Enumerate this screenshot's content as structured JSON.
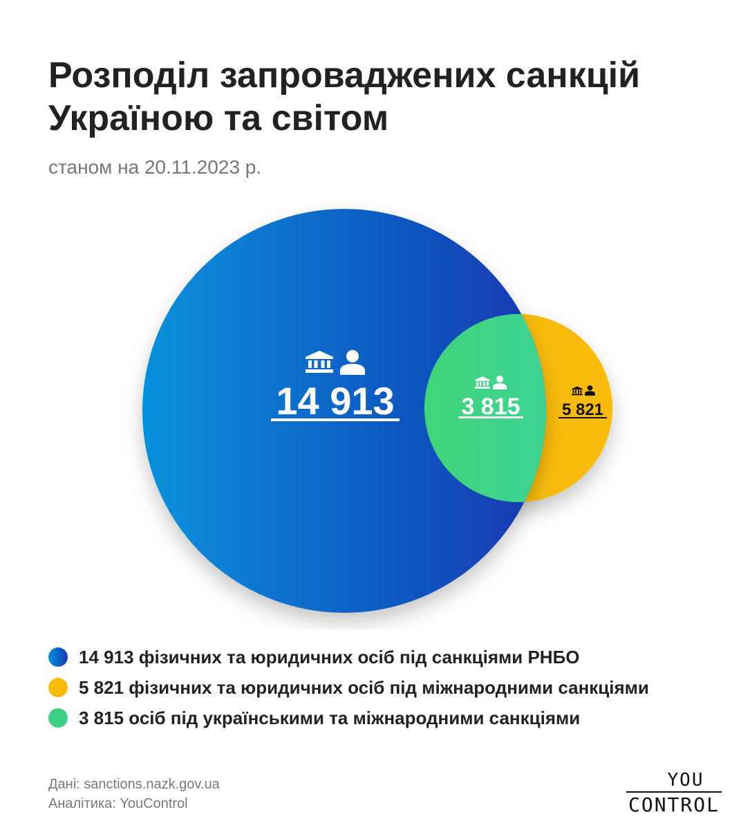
{
  "header": {
    "title": "Розподіл запроваджених санкцій Україною та світом",
    "subtitle": "станом на 20.11.2023 р."
  },
  "chart_data": {
    "type": "venn",
    "sets": [
      {
        "label": "14 913",
        "value": 14913,
        "colors": [
          "#0691dd",
          "#1537b0"
        ]
      },
      {
        "label": "5 821",
        "value": 5821,
        "color": "#f9bc0b"
      }
    ],
    "intersection": {
      "label": "3 815",
      "value": 3815,
      "color": "#3ecf87"
    },
    "legend": [
      {
        "text": "14 913 фізичних та юридичних осіб під санкціями РНБО",
        "color": "#1a5bc8"
      },
      {
        "text": "5 821 фізичних та юридичних осіб під міжнародними санкціями",
        "color": "#f9bc0b"
      },
      {
        "text": "3 815 осіб під українськими та міжнародними санкціями",
        "color": "#3ecf87"
      }
    ]
  },
  "footer": {
    "source": "Дані: sanctions.nazk.gov.ua",
    "analytics": "Аналітика: YouControl",
    "logo_top": "YOU",
    "logo_bottom": "CONTROL"
  },
  "icons": [
    "bank-icon",
    "person-icon"
  ]
}
